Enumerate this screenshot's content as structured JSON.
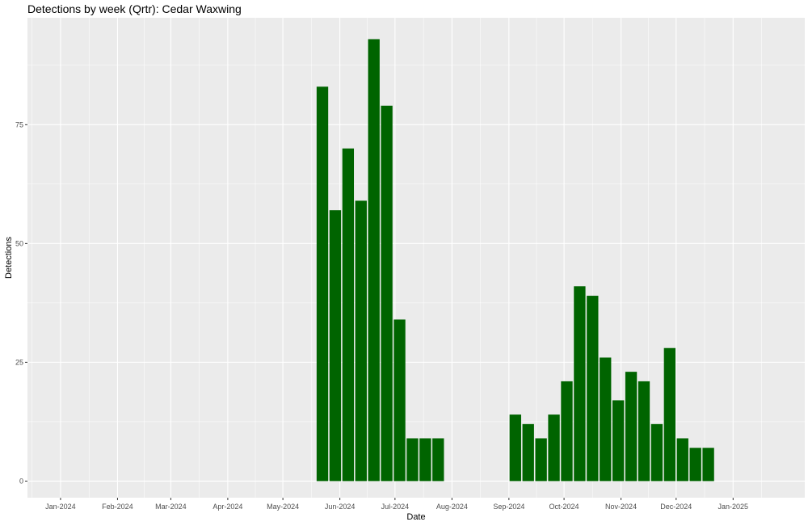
{
  "chart_data": {
    "type": "bar",
    "title": "Detections by week (Qrtr): Cedar Waxwing",
    "xlabel": "Date",
    "ylabel": "Detections",
    "x_axis": {
      "type": "date",
      "range": [
        "2023-12-14",
        "2025-02-09"
      ],
      "tick_dates": [
        "2024-01-01",
        "2024-02-01",
        "2024-03-01",
        "2024-04-01",
        "2024-05-01",
        "2024-06-01",
        "2024-07-01",
        "2024-08-01",
        "2024-09-01",
        "2024-10-01",
        "2024-11-01",
        "2024-12-01",
        "2025-01-01"
      ],
      "tick_labels": [
        "Jan-2024",
        "Feb-2024",
        "Mar-2024",
        "Apr-2024",
        "May-2024",
        "Jun-2024",
        "Jul-2024",
        "Aug-2024",
        "Sep-2024",
        "Oct-2024",
        "Nov-2024",
        "Dec-2024",
        "Jan-2025"
      ]
    },
    "y_axis": {
      "range": [
        -3.5,
        97.5
      ],
      "ticks": [
        0,
        25,
        50,
        75
      ],
      "tick_labels": [
        "0",
        "25",
        "50",
        "75"
      ]
    },
    "grid": true,
    "bar_color": "#006400",
    "panel_color": "#ebebeb",
    "grid_color": "#ffffff",
    "bars": [
      {
        "week_start": "2024-05-19",
        "value": 83
      },
      {
        "week_start": "2024-05-26",
        "value": 57
      },
      {
        "week_start": "2024-06-02",
        "value": 70
      },
      {
        "week_start": "2024-06-09",
        "value": 59
      },
      {
        "week_start": "2024-06-16",
        "value": 93
      },
      {
        "week_start": "2024-06-23",
        "value": 79
      },
      {
        "week_start": "2024-06-30",
        "value": 34
      },
      {
        "week_start": "2024-07-07",
        "value": 9
      },
      {
        "week_start": "2024-07-14",
        "value": 9
      },
      {
        "week_start": "2024-07-21",
        "value": 9
      },
      {
        "week_start": "2024-09-01",
        "value": 14
      },
      {
        "week_start": "2024-09-08",
        "value": 12
      },
      {
        "week_start": "2024-09-15",
        "value": 9
      },
      {
        "week_start": "2024-09-22",
        "value": 14
      },
      {
        "week_start": "2024-09-29",
        "value": 21
      },
      {
        "week_start": "2024-10-06",
        "value": 41
      },
      {
        "week_start": "2024-10-13",
        "value": 39
      },
      {
        "week_start": "2024-10-20",
        "value": 26
      },
      {
        "week_start": "2024-10-27",
        "value": 17
      },
      {
        "week_start": "2024-11-03",
        "value": 23
      },
      {
        "week_start": "2024-11-10",
        "value": 21
      },
      {
        "week_start": "2024-11-17",
        "value": 12
      },
      {
        "week_start": "2024-11-24",
        "value": 28
      },
      {
        "week_start": "2024-12-01",
        "value": 9
      },
      {
        "week_start": "2024-12-08",
        "value": 7
      },
      {
        "week_start": "2024-12-15",
        "value": 7
      }
    ]
  }
}
